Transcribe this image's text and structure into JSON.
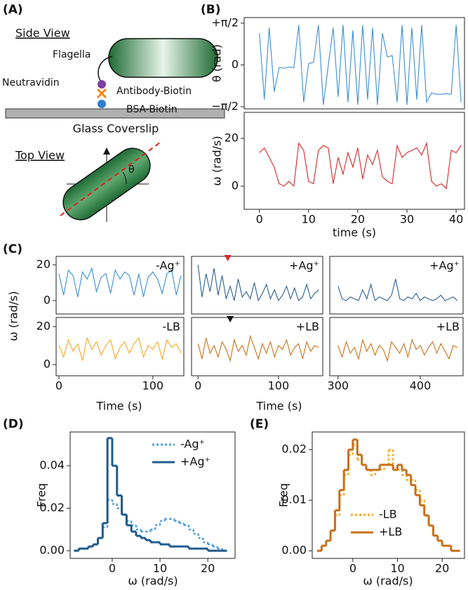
{
  "labels": {
    "panel_a": "(A)",
    "panel_b": "(B)",
    "panel_c": "(C)",
    "panel_d": "(D)",
    "panel_e": "(E)",
    "c_ylabel": "ω (rad/s)"
  },
  "diagram": {
    "side_view": "Side View",
    "flagella": "Flagella",
    "neutravidin": "Neutravidin",
    "antibody_biotin": "Antibody-Biotin",
    "bsa_biotin": "BSA-Biotin",
    "glass": "Glass Coverslip",
    "top_view": "Top View",
    "angle": "θ"
  },
  "chart_data": [
    {
      "type": "line",
      "ylabel": "θ (rad)",
      "xlim": [
        -3.1,
        41.7
      ],
      "ylim": [
        -1.65,
        1.78
      ],
      "yticks": [
        {
          "value": -1.5708,
          "label": "−π/2"
        },
        0,
        {
          "value": 1.5708,
          "label": "+π/2"
        }
      ],
      "x": [
        0,
        1,
        2,
        3,
        4,
        5,
        6,
        7,
        8,
        9,
        10,
        11,
        12,
        13,
        14,
        15,
        16,
        17,
        18,
        19,
        20,
        21,
        22,
        23,
        24,
        25,
        26,
        27,
        28,
        29,
        30,
        31,
        32,
        33,
        34,
        35,
        36,
        37,
        38,
        39,
        40,
        41
      ],
      "series": [
        {
          "color": "#3b8ed4",
          "values": [
            1.2,
            -1.3,
            1.4,
            -1.0,
            -0.1,
            -0.12,
            -0.08,
            -0.1,
            1.5,
            -1.4,
            0.05,
            0.1,
            1.5,
            -1.5,
            0.0,
            1.4,
            -1.2,
            1.5,
            -1.4,
            1.3,
            -1.5,
            1.5,
            -1.3,
            1.4,
            -1.5,
            1.2,
            0.3,
            0.35,
            -1.4,
            1.5,
            -1.5,
            1.4,
            -1.3,
            1.5,
            -1.4,
            -1.05,
            -1.1,
            -1.1,
            -1.08,
            -1.1,
            1.5,
            -1.4
          ]
        }
      ]
    },
    {
      "type": "line",
      "ylabel": "ω (rad/s)",
      "xlabel": "time (s)",
      "xlim": [
        -3.1,
        41.7
      ],
      "ylim": [
        -9.7,
        30.9
      ],
      "yticks": [
        0,
        20
      ],
      "xticks": [
        0,
        10,
        20,
        30,
        40
      ],
      "x": [
        0,
        1,
        2,
        3,
        4,
        5,
        6,
        7,
        8,
        9,
        10,
        11,
        12,
        13,
        14,
        15,
        16,
        17,
        18,
        19,
        20,
        21,
        22,
        23,
        24,
        25,
        26,
        27,
        28,
        29,
        30,
        31,
        32,
        33,
        34,
        35,
        36,
        37,
        38,
        39,
        40,
        41
      ],
      "series": [
        {
          "color": "#d62728",
          "values": [
            14,
            16,
            12,
            8,
            1,
            0,
            2,
            0,
            18,
            15,
            2,
            1,
            15,
            17,
            16,
            1,
            12,
            5,
            14,
            8,
            16,
            3,
            13,
            9,
            15,
            4,
            2,
            1,
            17,
            12,
            14,
            15,
            16,
            13,
            18,
            2,
            0,
            1,
            -1,
            15,
            14,
            17
          ]
        }
      ]
    },
    {
      "type": "line",
      "annotation": "-Ag⁺",
      "xlim": [
        -3,
        133
      ],
      "ylim": [
        -7.5,
        24.7
      ],
      "yticks": [
        0,
        20
      ],
      "x": [
        0,
        5,
        10,
        15,
        20,
        25,
        30,
        35,
        40,
        45,
        50,
        55,
        60,
        65,
        70,
        75,
        80,
        85,
        90,
        95,
        100,
        105,
        110,
        115,
        120,
        125,
        130
      ],
      "series": [
        {
          "color": "#3a8fd6",
          "values": [
            15,
            3,
            17,
            14,
            2,
            16,
            12,
            18,
            5,
            13,
            15,
            4,
            17,
            12,
            16,
            14,
            3,
            15,
            2,
            13,
            16,
            12,
            4,
            15,
            17,
            3,
            14
          ]
        }
      ]
    },
    {
      "type": "line",
      "annotation": "+Ag⁺",
      "xlim": [
        -8,
        155
      ],
      "ylim": [
        -7.5,
        24.7
      ],
      "marker": {
        "x": 37,
        "color": "#e8222a"
      },
      "x": [
        0,
        5,
        10,
        15,
        20,
        25,
        30,
        35,
        40,
        45,
        50,
        55,
        60,
        65,
        70,
        75,
        80,
        85,
        90,
        95,
        100,
        105,
        110,
        115,
        120,
        125,
        130,
        135,
        140,
        145,
        150
      ],
      "series": [
        {
          "color": "#2a5f8f",
          "values": [
            20,
            2,
            15,
            5,
            18,
            3,
            14,
            1,
            8,
            0,
            12,
            2,
            5,
            1,
            10,
            0,
            4,
            9,
            1,
            6,
            0,
            3,
            8,
            1,
            7,
            0,
            2,
            9,
            1,
            4,
            6
          ]
        }
      ]
    },
    {
      "type": "line",
      "annotation": "+Ag⁺",
      "xlim": [
        290,
        452
      ],
      "ylim": [
        -7.5,
        24.7
      ],
      "x": [
        300,
        305,
        310,
        315,
        320,
        325,
        330,
        335,
        340,
        345,
        350,
        355,
        360,
        365,
        370,
        375,
        380,
        385,
        390,
        395,
        400,
        405,
        410,
        415,
        420,
        425,
        430,
        435,
        440,
        445
      ],
      "series": [
        {
          "color": "#2a5f8f",
          "values": [
            8,
            1,
            0,
            2,
            1,
            0,
            6,
            1,
            9,
            0,
            2,
            1,
            0,
            3,
            12,
            1,
            0,
            2,
            1,
            4,
            0,
            2,
            1,
            0,
            1,
            3,
            0,
            1,
            2,
            0
          ]
        }
      ]
    },
    {
      "type": "line",
      "annotation": "-LB",
      "xlabel": "Time (s)",
      "xlim": [
        -3,
        133
      ],
      "ylim": [
        -5.9,
        24.8
      ],
      "yticks": [
        0,
        20
      ],
      "xticks": [
        0,
        100
      ],
      "x": [
        0,
        5,
        10,
        15,
        20,
        25,
        30,
        35,
        40,
        45,
        50,
        55,
        60,
        65,
        70,
        75,
        80,
        85,
        90,
        95,
        100,
        105,
        110,
        115,
        120,
        125,
        130
      ],
      "series": [
        {
          "color": "#f5a623",
          "values": [
            10,
            4,
            13,
            7,
            11,
            2,
            14,
            8,
            12,
            5,
            10,
            13,
            3,
            9,
            12,
            6,
            11,
            14,
            4,
            10,
            8,
            12,
            3,
            13,
            9,
            11,
            6
          ]
        }
      ]
    },
    {
      "type": "line",
      "annotation": "+LB",
      "xlabel": "Time (s)",
      "xlim": [
        -8,
        155
      ],
      "ylim": [
        -5.9,
        24.8
      ],
      "xticks": [
        0,
        100
      ],
      "marker": {
        "x": 40,
        "color": "#111111"
      },
      "x": [
        0,
        5,
        10,
        15,
        20,
        25,
        30,
        35,
        40,
        45,
        50,
        55,
        60,
        65,
        70,
        75,
        80,
        85,
        90,
        95,
        100,
        105,
        110,
        115,
        120,
        125,
        130,
        135,
        140,
        145,
        150
      ],
      "series": [
        {
          "color": "#c8701a",
          "values": [
            11,
            3,
            14,
            6,
            10,
            4,
            12,
            8,
            2,
            13,
            7,
            10,
            5,
            15,
            9,
            3,
            11,
            6,
            12,
            4,
            10,
            8,
            13,
            5,
            9,
            11,
            3,
            12,
            7,
            10,
            9
          ]
        }
      ]
    },
    {
      "type": "line",
      "annotation": "+LB",
      "xlim": [
        290,
        452
      ],
      "ylim": [
        -5.9,
        24.8
      ],
      "xticks": [
        300,
        400
      ],
      "x": [
        300,
        305,
        310,
        315,
        320,
        325,
        330,
        335,
        340,
        345,
        350,
        355,
        360,
        365,
        370,
        375,
        380,
        385,
        390,
        395,
        400,
        405,
        410,
        415,
        420,
        425,
        430,
        435,
        440,
        445
      ],
      "series": [
        {
          "color": "#c8701a",
          "values": [
            10,
            4,
            12,
            6,
            9,
            3,
            13,
            7,
            11,
            5,
            10,
            8,
            2,
            12,
            9,
            6,
            11,
            4,
            13,
            8,
            10,
            5,
            9,
            12,
            6,
            11,
            7,
            3,
            10,
            9
          ]
        }
      ]
    },
    {
      "type": "histogram",
      "xlabel": "ω (rad/s)",
      "ylabel": "Freq",
      "xlim": [
        -8.8,
        25.7
      ],
      "ylim": [
        -0.0036,
        0.0559
      ],
      "xticks": [
        0,
        10,
        20
      ],
      "yticks": [
        {
          "value": 0,
          "label": "0.00"
        },
        {
          "value": 0.02,
          "label": "0.02"
        },
        {
          "value": 0.04,
          "label": "0.04"
        }
      ],
      "legend": "upper right",
      "bins": [
        -8,
        -7,
        -6,
        -5,
        -4,
        -3,
        -2,
        -1,
        0,
        1,
        2,
        3,
        4,
        5,
        6,
        7,
        8,
        9,
        10,
        11,
        12,
        13,
        14,
        15,
        16,
        17,
        18,
        19,
        20,
        21,
        22,
        23,
        24
      ],
      "series": [
        {
          "name": "-Ag⁺",
          "color": "#4a9ee0",
          "style": "dotted",
          "values": [
            0.0,
            0.001,
            0.001,
            0.002,
            0.003,
            0.006,
            0.011,
            0.024,
            0.022,
            0.02,
            0.017,
            0.014,
            0.012,
            0.01,
            0.009,
            0.009,
            0.01,
            0.012,
            0.014,
            0.015,
            0.015,
            0.014,
            0.013,
            0.012,
            0.01,
            0.008,
            0.006,
            0.004,
            0.003,
            0.002,
            0.001,
            0.0
          ]
        },
        {
          "name": "+Ag⁺",
          "color": "#1f5a8c",
          "style": "solid",
          "values": [
            0.0,
            0.001,
            0.001,
            0.002,
            0.003,
            0.006,
            0.013,
            0.053,
            0.04,
            0.026,
            0.017,
            0.012,
            0.009,
            0.007,
            0.006,
            0.005,
            0.004,
            0.004,
            0.003,
            0.003,
            0.002,
            0.002,
            0.002,
            0.002,
            0.001,
            0.001,
            0.001,
            0.001,
            0.0,
            0.0,
            0.0,
            0.0
          ]
        }
      ]
    },
    {
      "type": "histogram",
      "xlabel": "ω (rad/s)",
      "ylabel": "Freq",
      "xlim": [
        -9.1,
        25
      ],
      "ylim": [
        -0.0015,
        0.0235
      ],
      "xticks": [
        0,
        10,
        20
      ],
      "yticks": [
        {
          "value": 0,
          "label": "0.00"
        },
        {
          "value": 0.01,
          "label": "0.01"
        },
        {
          "value": 0.02,
          "label": "0.02"
        }
      ],
      "legend": "lower left",
      "bins": [
        -8,
        -7,
        -6,
        -5,
        -4,
        -3,
        -2,
        -1,
        0,
        1,
        2,
        3,
        4,
        5,
        6,
        7,
        8,
        9,
        10,
        11,
        12,
        13,
        14,
        15,
        16,
        17,
        18,
        19,
        20,
        21,
        22,
        23,
        24
      ],
      "series": [
        {
          "name": "-LB",
          "color": "#f5a623",
          "style": "dotted",
          "values": [
            0.0,
            0.001,
            0.002,
            0.004,
            0.007,
            0.011,
            0.015,
            0.019,
            0.021,
            0.018,
            0.017,
            0.016,
            0.015,
            0.016,
            0.016,
            0.017,
            0.02,
            0.016,
            0.016,
            0.015,
            0.014,
            0.014,
            0.012,
            0.01,
            0.007,
            0.005,
            0.003,
            0.002,
            0.001,
            0.001,
            0.0,
            0.0
          ]
        },
        {
          "name": "+LB",
          "color": "#c8701a",
          "style": "solid",
          "values": [
            0.0,
            0.001,
            0.002,
            0.004,
            0.008,
            0.012,
            0.016,
            0.02,
            0.022,
            0.019,
            0.017,
            0.016,
            0.016,
            0.016,
            0.017,
            0.017,
            0.017,
            0.016,
            0.017,
            0.016,
            0.015,
            0.013,
            0.011,
            0.009,
            0.007,
            0.005,
            0.003,
            0.002,
            0.001,
            0.001,
            0.0,
            0.0
          ]
        }
      ]
    }
  ]
}
